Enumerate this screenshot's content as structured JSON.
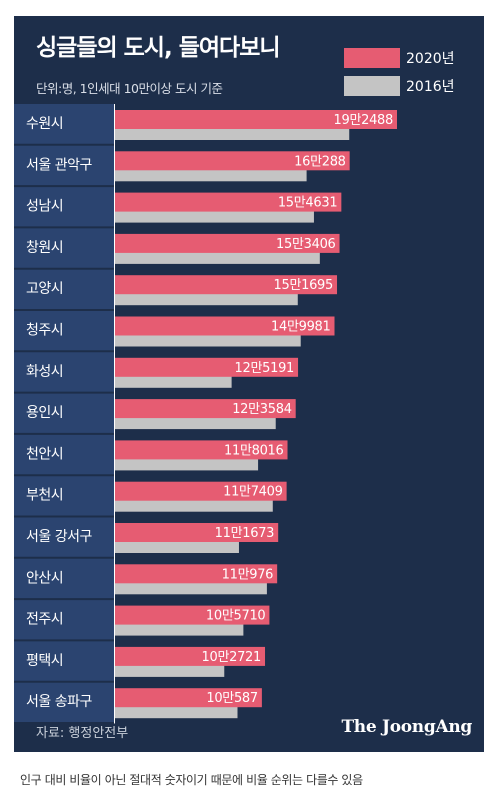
{
  "header": {
    "title": "싱글들의 도시, 들여다보니",
    "subtitle": "단위:명, 1인세대 10만이상 도시 기준"
  },
  "legend": [
    {
      "label": "2020년",
      "color": "#e65c72"
    },
    {
      "label": "2016년",
      "color": "#c4c4c4"
    }
  ],
  "chart_data": {
    "type": "bar",
    "orientation": "horizontal",
    "title": "싱글들의 도시, 들여다보니",
    "subtitle": "단위:명, 1인세대 10만이상 도시 기준",
    "categories": [
      "수원시",
      "서울 관악구",
      "성남시",
      "창원시",
      "고양시",
      "청주시",
      "화성시",
      "용인시",
      "천안시",
      "부천시",
      "서울 강서구",
      "안산시",
      "전주시",
      "평택시",
      "서울 송파구"
    ],
    "series": [
      {
        "name": "2020년",
        "color": "#e65c72",
        "values": [
          192488,
          160288,
          154631,
          153406,
          151695,
          149981,
          125191,
          123584,
          118016,
          117409,
          111673,
          110976,
          105710,
          102721,
          100587
        ],
        "labels": [
          "19만2488",
          "16만288",
          "15만4631",
          "15만3406",
          "15만1695",
          "14만9981",
          "12만5191",
          "12만3584",
          "11만8016",
          "11만7409",
          "11만1673",
          "11만976",
          "10만5710",
          "10만2721",
          "10만587"
        ]
      },
      {
        "name": "2016년",
        "color": "#c4c4c4",
        "values": [
          160000,
          131000,
          136000,
          140000,
          125000,
          127000,
          80000,
          110000,
          98000,
          108000,
          85000,
          104000,
          88000,
          75000,
          84000
        ]
      }
    ],
    "xlim": [
      0,
      200000
    ],
    "legend_position": "top-right",
    "grid": false
  },
  "source": "자료: 행정안전부",
  "brand": "The JoongAng",
  "footnote": "인구 대비 비율이 아닌 절대적 숫자이기 때문에 비율 순위는 다를수 있음"
}
